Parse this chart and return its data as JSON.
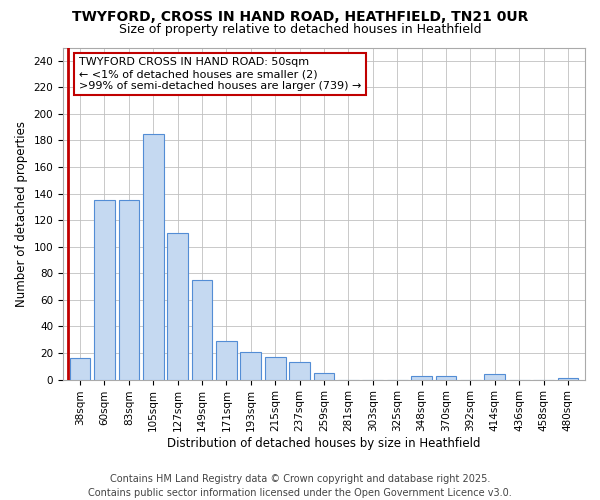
{
  "title": "TWYFORD, CROSS IN HAND ROAD, HEATHFIELD, TN21 0UR",
  "subtitle": "Size of property relative to detached houses in Heathfield",
  "xlabel": "Distribution of detached houses by size in Heathfield",
  "ylabel": "Number of detached properties",
  "footer": "Contains HM Land Registry data © Crown copyright and database right 2025.\nContains public sector information licensed under the Open Government Licence v3.0.",
  "categories": [
    "38sqm",
    "60sqm",
    "83sqm",
    "105sqm",
    "127sqm",
    "149sqm",
    "171sqm",
    "193sqm",
    "215sqm",
    "237sqm",
    "259sqm",
    "281sqm",
    "303sqm",
    "325sqm",
    "348sqm",
    "370sqm",
    "392sqm",
    "414sqm",
    "436sqm",
    "458sqm",
    "480sqm"
  ],
  "values": [
    16,
    135,
    135,
    185,
    110,
    75,
    29,
    21,
    17,
    13,
    5,
    0,
    0,
    0,
    3,
    3,
    0,
    4,
    0,
    0,
    1
  ],
  "highlight_color": "#c00000",
  "bar_color": "#c5d9f1",
  "bar_edge_color": "#538dd5",
  "annotation_line1": "TWYFORD CROSS IN HAND ROAD: 50sqm",
  "annotation_line2": "← <1% of detached houses are smaller (2)",
  "annotation_line3": ">99% of semi-detached houses are larger (739) →",
  "annotation_box_edge": "#c00000",
  "annotation_box_face": "white",
  "ylim": [
    0,
    250
  ],
  "yticks": [
    0,
    20,
    40,
    60,
    80,
    100,
    120,
    140,
    160,
    180,
    200,
    220,
    240
  ],
  "grid_color": "#c0c0c0",
  "bg_color": "#ffffff",
  "plot_bg_color": "#ffffff",
  "title_fontsize": 10,
  "subtitle_fontsize": 9,
  "label_fontsize": 8.5,
  "tick_fontsize": 7.5,
  "annotation_fontsize": 8,
  "footer_fontsize": 7
}
